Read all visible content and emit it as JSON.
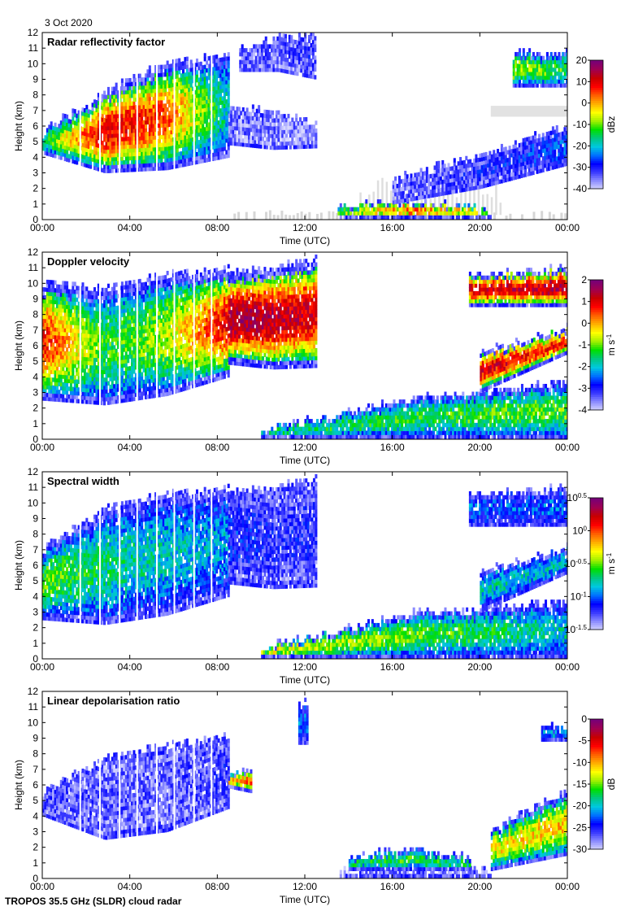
{
  "header": {
    "date": "3 Oct 2020"
  },
  "footer": {
    "instrument": "TROPOS 35.5 GHz (SLDR) cloud radar"
  },
  "colors": {
    "colormap": [
      "#d8d8ff",
      "#8f8fff",
      "#3c3cff",
      "#0000ff",
      "#0070ff",
      "#00c8e0",
      "#00c880",
      "#00e000",
      "#a0f000",
      "#ffff00",
      "#ffb000",
      "#ff6000",
      "#ff0000",
      "#c80000",
      "#a00050",
      "#780078"
    ],
    "noise": "#d6d6d6"
  },
  "chart_data": [
    {
      "type": "heatmap",
      "title": "Radar reflectivity factor",
      "xlabel": "Time (UTC)",
      "ylabel": "Height (km)",
      "xlim": [
        0,
        24
      ],
      "ylim": [
        0,
        12
      ],
      "xticks": [
        "00:00",
        "04:00",
        "08:00",
        "12:00",
        "16:00",
        "20:00",
        "00:00"
      ],
      "yticks": [
        "0",
        "1",
        "2",
        "3",
        "4",
        "5",
        "6",
        "7",
        "8",
        "9",
        "10",
        "11",
        "12"
      ],
      "colorbar": {
        "label": "dBz",
        "range": [
          -40,
          20
        ],
        "ticks": [
          "20",
          "10",
          "0",
          "-10",
          "-20",
          "-30",
          "-40"
        ]
      },
      "regions": [
        {
          "t": [
            0,
            8.5
          ],
          "base": [
            4.2,
            3.0,
            3.2,
            4.0
          ],
          "top": [
            5.5,
            8.0,
            10.0,
            10.5
          ],
          "core": [
            0.4,
            0.8,
            0.7,
            0.3
          ]
        },
        {
          "t": [
            8.5,
            12.5
          ],
          "base": [
            4.8,
            4.5,
            4.6
          ],
          "top": [
            7.0,
            6.8,
            6.0
          ],
          "core": [
            0.05,
            0.02,
            0.0
          ]
        },
        {
          "t": [
            9,
            12.5
          ],
          "base": [
            9.5,
            9.5,
            9.0
          ],
          "top": [
            10.8,
            11.5,
            11.8
          ],
          "core": [
            0.05,
            0.05,
            0.1
          ]
        },
        {
          "t": [
            13.5,
            20.5
          ],
          "base": [
            0.05,
            0.05,
            0.05
          ],
          "top": [
            0.8,
            1.0,
            0.5
          ],
          "core": [
            0.5,
            0.7,
            0.5
          ]
        },
        {
          "t": [
            16,
            24
          ],
          "base": [
            1.0,
            2.0,
            3.5
          ],
          "top": [
            2.5,
            4.0,
            6.0
          ],
          "core": [
            0.05,
            0.1,
            0.2
          ]
        },
        {
          "t": [
            21.5,
            24
          ],
          "base": [
            8.5,
            8.5
          ],
          "top": [
            10.5,
            10.6
          ],
          "core": [
            0.5,
            0.4
          ]
        }
      ]
    },
    {
      "type": "heatmap",
      "title": "Doppler velocity",
      "xlabel": "Time (UTC)",
      "ylabel": "Height (km)",
      "xlim": [
        0,
        24
      ],
      "ylim": [
        0,
        12
      ],
      "xticks": [
        "00:00",
        "04:00",
        "08:00",
        "12:00",
        "16:00",
        "20:00",
        "00:00"
      ],
      "yticks": [
        "0",
        "1",
        "2",
        "3",
        "4",
        "5",
        "6",
        "7",
        "8",
        "9",
        "10",
        "11",
        "12"
      ],
      "colorbar": {
        "label": "m s⁻¹",
        "range": [
          -4,
          2
        ],
        "ticks": [
          "2",
          "1",
          "0",
          "-1",
          "-2",
          "-3",
          "-4"
        ]
      },
      "regions": [
        {
          "t": [
            0,
            8.5
          ],
          "base": [
            2.5,
            2.2,
            2.8,
            4.0
          ],
          "top": [
            10.0,
            9.5,
            10.5,
            10.8
          ],
          "core": [
            0.75,
            0.4,
            0.5,
            0.8
          ]
        },
        {
          "t": [
            8.5,
            12.5
          ],
          "base": [
            4.8,
            4.5,
            4.6
          ],
          "top": [
            10.5,
            10.8,
            11.5
          ],
          "core": [
            0.9,
            0.85,
            0.8
          ]
        },
        {
          "t": [
            10,
            24
          ],
          "base": [
            0.05,
            0.05,
            0.05
          ],
          "top": [
            0.5,
            2.5,
            3.5
          ],
          "core": [
            0.35,
            0.4,
            0.45
          ]
        },
        {
          "t": [
            20,
            24
          ],
          "base": [
            3.0,
            5.5
          ],
          "top": [
            5.5,
            7.0
          ],
          "core": [
            0.8,
            0.75
          ]
        },
        {
          "t": [
            19.5,
            24
          ],
          "base": [
            8.5,
            8.5
          ],
          "top": [
            10.5,
            10.8
          ],
          "core": [
            0.8,
            0.85
          ]
        }
      ]
    },
    {
      "type": "heatmap",
      "title": "Spectral width",
      "xlabel": "Time (UTC)",
      "ylabel": "Height (km)",
      "xlim": [
        0,
        24
      ],
      "ylim": [
        0,
        12
      ],
      "xticks": [
        "00:00",
        "04:00",
        "08:00",
        "12:00",
        "16:00",
        "20:00",
        "00:00"
      ],
      "yticks": [
        "0",
        "1",
        "2",
        "3",
        "4",
        "5",
        "6",
        "7",
        "8",
        "9",
        "10",
        "11",
        "12"
      ],
      "colorbar": {
        "label": "m s⁻¹",
        "scale": "log10",
        "range": [
          -1.5,
          0.5
        ],
        "ticks": [
          "10^0.5",
          "10^0",
          "10^-0.5",
          "10^-1",
          "10^-1.5"
        ]
      },
      "regions": [
        {
          "t": [
            0,
            8.5
          ],
          "base": [
            2.5,
            2.2,
            2.8,
            4.0
          ],
          "top": [
            7.0,
            9.5,
            10.5,
            10.8
          ],
          "core": [
            0.45,
            0.35,
            0.3,
            0.25
          ]
        },
        {
          "t": [
            8.5,
            12.5
          ],
          "base": [
            4.8,
            4.5,
            4.6
          ],
          "top": [
            10.5,
            10.8,
            11.5
          ],
          "core": [
            0.15,
            0.1,
            0.1
          ]
        },
        {
          "t": [
            10,
            24
          ],
          "base": [
            0.05,
            0.05,
            0.05
          ],
          "top": [
            0.6,
            2.8,
            3.5
          ],
          "core": [
            0.55,
            0.45,
            0.3
          ]
        },
        {
          "t": [
            20,
            24
          ],
          "base": [
            3.0,
            5.5
          ],
          "top": [
            5.5,
            7.0
          ],
          "core": [
            0.3,
            0.3
          ]
        },
        {
          "t": [
            19.5,
            24
          ],
          "base": [
            8.5,
            8.5
          ],
          "top": [
            10.5,
            10.8
          ],
          "core": [
            0.2,
            0.2
          ]
        }
      ]
    },
    {
      "type": "heatmap",
      "title": "Linear depolarisation ratio",
      "xlabel": "Time (UTC)",
      "ylabel": "Height (km)",
      "xlim": [
        0,
        24
      ],
      "ylim": [
        0,
        12
      ],
      "xticks": [
        "00:00",
        "04:00",
        "08:00",
        "12:00",
        "16:00",
        "20:00",
        "00:00"
      ],
      "yticks": [
        "0",
        "1",
        "2",
        "3",
        "4",
        "5",
        "6",
        "7",
        "8",
        "9",
        "10",
        "11",
        "12"
      ],
      "colorbar": {
        "label": "dB",
        "range": [
          -30,
          0
        ],
        "ticks": [
          "0",
          "-5",
          "-10",
          "-15",
          "-20",
          "-25",
          "-30"
        ]
      },
      "regions": [
        {
          "t": [
            0,
            8.5
          ],
          "base": [
            4.0,
            2.5,
            3.0,
            4.5
          ],
          "top": [
            5.5,
            7.5,
            8.5,
            9.0
          ],
          "core": [
            0.08,
            0.05,
            0.05,
            0.1
          ]
        },
        {
          "t": [
            8.5,
            9.5
          ],
          "base": [
            5.8,
            5.5
          ],
          "top": [
            6.5,
            6.8
          ],
          "core": [
            0.6,
            0.7
          ]
        },
        {
          "t": [
            11.7,
            12.1
          ],
          "base": [
            8.6,
            8.6
          ],
          "top": [
            11.0,
            11.2
          ],
          "core": [
            0.2,
            0.2
          ]
        },
        {
          "t": [
            13.5,
            20.5
          ],
          "base": [
            0.05,
            0.05,
            0.05
          ],
          "top": [
            0.4,
            0.45,
            0.5
          ],
          "core": [
            0.05,
            0.05,
            0.05
          ]
        },
        {
          "t": [
            14,
            19.5
          ],
          "base": [
            0.5,
            0.5,
            0.5
          ],
          "top": [
            1.2,
            1.8,
            1.2
          ],
          "core": [
            0.35,
            0.4,
            0.35
          ]
        },
        {
          "t": [
            20.5,
            24
          ],
          "base": [
            0.5,
            1.5
          ],
          "top": [
            3.0,
            5.5
          ],
          "core": [
            0.55,
            0.6
          ]
        },
        {
          "t": [
            22.8,
            24
          ],
          "base": [
            8.8,
            8.8
          ],
          "top": [
            9.6,
            9.6
          ],
          "core": [
            0.25,
            0.25
          ]
        }
      ]
    }
  ]
}
